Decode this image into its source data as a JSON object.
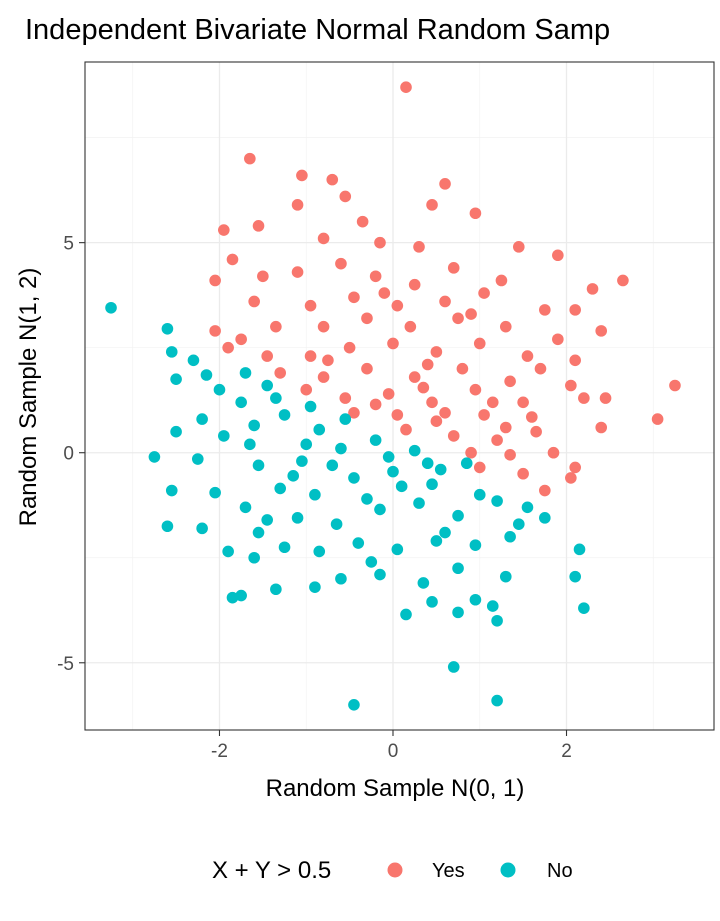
{
  "chart_data": {
    "type": "scatter",
    "title": "Independent Bivariate Normal Random Samp",
    "xlabel": "Random Sample N(0, 1)",
    "ylabel": "Random Sample N(1, 2)",
    "xlim": [
      -3.55,
      3.7
    ],
    "ylim": [
      -6.6,
      9.3
    ],
    "x_ticks": [
      -2,
      0,
      2
    ],
    "x_tick_labels": [
      "-2",
      "0",
      "2"
    ],
    "y_ticks": [
      -5,
      0,
      5
    ],
    "y_tick_labels": [
      "-5",
      "0",
      "5"
    ],
    "grid": true,
    "legend": {
      "title": "X + Y > 0.5",
      "position": "bottom",
      "entries": [
        {
          "label": "Yes",
          "color": "#F8766D"
        },
        {
          "label": "No",
          "color": "#00BFC4"
        }
      ]
    },
    "series": [
      {
        "name": "Yes",
        "color": "#F8766D",
        "points": [
          [
            0.15,
            8.7
          ],
          [
            -1.65,
            7.0
          ],
          [
            -1.05,
            6.6
          ],
          [
            -0.7,
            6.5
          ],
          [
            0.6,
            6.4
          ],
          [
            -0.55,
            6.1
          ],
          [
            -1.1,
            5.9
          ],
          [
            0.45,
            5.9
          ],
          [
            0.95,
            5.7
          ],
          [
            -0.35,
            5.5
          ],
          [
            -1.95,
            5.3
          ],
          [
            -1.55,
            5.4
          ],
          [
            -0.8,
            5.1
          ],
          [
            -0.15,
            5.0
          ],
          [
            0.3,
            4.9
          ],
          [
            1.45,
            4.9
          ],
          [
            -1.85,
            4.6
          ],
          [
            -0.6,
            4.5
          ],
          [
            0.7,
            4.4
          ],
          [
            1.9,
            4.7
          ],
          [
            -2.05,
            4.1
          ],
          [
            -1.5,
            4.2
          ],
          [
            -1.1,
            4.3
          ],
          [
            -0.2,
            4.2
          ],
          [
            0.25,
            4.0
          ],
          [
            1.25,
            4.1
          ],
          [
            2.3,
            3.9
          ],
          [
            2.65,
            4.1
          ],
          [
            -1.6,
            3.6
          ],
          [
            -0.95,
            3.5
          ],
          [
            -0.45,
            3.7
          ],
          [
            0.05,
            3.5
          ],
          [
            0.6,
            3.6
          ],
          [
            1.05,
            3.8
          ],
          [
            1.75,
            3.4
          ],
          [
            2.1,
            3.4
          ],
          [
            -2.05,
            2.9
          ],
          [
            -1.75,
            2.7
          ],
          [
            -1.35,
            3.0
          ],
          [
            -0.8,
            3.0
          ],
          [
            -0.3,
            3.2
          ],
          [
            0.2,
            3.0
          ],
          [
            0.75,
            3.2
          ],
          [
            1.3,
            3.0
          ],
          [
            1.9,
            2.7
          ],
          [
            2.4,
            2.9
          ],
          [
            -1.9,
            2.5
          ],
          [
            -1.45,
            2.3
          ],
          [
            -0.95,
            2.3
          ],
          [
            -0.5,
            2.5
          ],
          [
            0.0,
            2.6
          ],
          [
            0.5,
            2.4
          ],
          [
            1.0,
            2.6
          ],
          [
            1.55,
            2.3
          ],
          [
            2.1,
            2.2
          ],
          [
            -1.3,
            1.9
          ],
          [
            -0.8,
            1.8
          ],
          [
            -0.3,
            2.0
          ],
          [
            0.25,
            1.8
          ],
          [
            0.8,
            2.0
          ],
          [
            1.35,
            1.7
          ],
          [
            2.05,
            1.6
          ],
          [
            2.2,
            1.3
          ],
          [
            3.25,
            1.6
          ],
          [
            -1.0,
            1.5
          ],
          [
            -0.55,
            1.3
          ],
          [
            -0.05,
            1.4
          ],
          [
            0.45,
            1.2
          ],
          [
            0.95,
            1.5
          ],
          [
            1.5,
            1.2
          ],
          [
            -0.45,
            0.95
          ],
          [
            0.05,
            0.9
          ],
          [
            0.5,
            0.75
          ],
          [
            1.05,
            0.9
          ],
          [
            1.6,
            0.85
          ],
          [
            2.45,
            1.3
          ],
          [
            3.05,
            0.8
          ],
          [
            0.15,
            0.55
          ],
          [
            0.7,
            0.4
          ],
          [
            1.2,
            0.3
          ],
          [
            1.65,
            0.5
          ],
          [
            2.4,
            0.6
          ],
          [
            0.9,
            0.0
          ],
          [
            1.35,
            -0.05
          ],
          [
            1.85,
            0.0
          ],
          [
            1.0,
            -0.35
          ],
          [
            1.5,
            -0.5
          ],
          [
            2.05,
            -0.6
          ],
          [
            2.1,
            -0.35
          ],
          [
            1.75,
            -0.9
          ],
          [
            1.3,
            0.6
          ],
          [
            0.35,
            1.55
          ],
          [
            -0.2,
            1.15
          ],
          [
            0.6,
            0.95
          ],
          [
            1.15,
            1.2
          ],
          [
            -0.75,
            2.2
          ],
          [
            1.7,
            2.0
          ],
          [
            0.9,
            3.3
          ],
          [
            -0.1,
            3.8
          ],
          [
            0.4,
            2.1
          ]
        ]
      },
      {
        "name": "No",
        "color": "#00BFC4",
        "points": [
          [
            -3.25,
            3.45
          ],
          [
            -2.6,
            2.95
          ],
          [
            -2.55,
            2.4
          ],
          [
            -2.3,
            2.2
          ],
          [
            -2.5,
            1.75
          ],
          [
            -2.15,
            1.85
          ],
          [
            -1.7,
            1.9
          ],
          [
            -1.45,
            1.6
          ],
          [
            -2.5,
            0.5
          ],
          [
            -2.2,
            0.8
          ],
          [
            -2.75,
            -0.1
          ],
          [
            -2.25,
            -0.15
          ],
          [
            -1.95,
            0.4
          ],
          [
            -1.65,
            0.2
          ],
          [
            -1.25,
            0.9
          ],
          [
            -0.85,
            0.55
          ],
          [
            -1.55,
            -0.3
          ],
          [
            -1.05,
            -0.2
          ],
          [
            -0.6,
            0.1
          ],
          [
            -0.2,
            0.3
          ],
          [
            0.25,
            0.05
          ],
          [
            -2.05,
            -0.95
          ],
          [
            -1.7,
            -1.3
          ],
          [
            -1.3,
            -0.85
          ],
          [
            -0.9,
            -1.0
          ],
          [
            -0.45,
            -0.6
          ],
          [
            0.0,
            -0.45
          ],
          [
            0.45,
            -0.75
          ],
          [
            0.85,
            -0.25
          ],
          [
            -2.55,
            -0.9
          ],
          [
            -2.6,
            -1.75
          ],
          [
            -2.2,
            -1.8
          ],
          [
            -1.55,
            -1.9
          ],
          [
            -1.1,
            -1.55
          ],
          [
            -0.65,
            -1.7
          ],
          [
            -0.15,
            -1.35
          ],
          [
            0.3,
            -1.2
          ],
          [
            0.75,
            -1.5
          ],
          [
            1.2,
            -1.15
          ],
          [
            1.55,
            -1.3
          ],
          [
            1.75,
            -1.55
          ],
          [
            -1.9,
            -2.35
          ],
          [
            -1.6,
            -2.5
          ],
          [
            -1.25,
            -2.25
          ],
          [
            -0.85,
            -2.35
          ],
          [
            -0.4,
            -2.15
          ],
          [
            0.05,
            -2.3
          ],
          [
            0.5,
            -2.1
          ],
          [
            0.95,
            -2.2
          ],
          [
            1.35,
            -2.0
          ],
          [
            2.15,
            -2.3
          ],
          [
            -1.85,
            -3.45
          ],
          [
            -1.75,
            -3.4
          ],
          [
            -1.35,
            -3.25
          ],
          [
            -0.9,
            -3.2
          ],
          [
            -0.6,
            -3.0
          ],
          [
            -0.15,
            -2.9
          ],
          [
            0.35,
            -3.1
          ],
          [
            0.75,
            -2.75
          ],
          [
            1.3,
            -2.95
          ],
          [
            2.1,
            -2.95
          ],
          [
            0.15,
            -3.85
          ],
          [
            0.45,
            -3.55
          ],
          [
            0.75,
            -3.8
          ],
          [
            0.95,
            -3.5
          ],
          [
            1.15,
            -3.65
          ],
          [
            1.2,
            -4.0
          ],
          [
            2.2,
            -3.7
          ],
          [
            0.7,
            -5.1
          ],
          [
            1.2,
            -5.9
          ],
          [
            -0.45,
            -6.0
          ],
          [
            -1.75,
            1.2
          ],
          [
            -1.35,
            1.3
          ],
          [
            -0.95,
            1.1
          ],
          [
            -0.55,
            0.8
          ],
          [
            -0.05,
            -0.1
          ],
          [
            0.4,
            -0.25
          ],
          [
            -2.0,
            1.5
          ],
          [
            -1.15,
            -0.55
          ],
          [
            0.6,
            -1.9
          ],
          [
            -0.3,
            -1.1
          ],
          [
            1.0,
            -1.0
          ],
          [
            -1.0,
            0.2
          ],
          [
            0.1,
            -0.8
          ],
          [
            -1.45,
            -1.6
          ],
          [
            -0.7,
            -0.3
          ],
          [
            0.55,
            -0.4
          ],
          [
            -0.25,
            -2.6
          ],
          [
            1.45,
            -1.7
          ],
          [
            -1.6,
            0.65
          ]
        ]
      }
    ]
  }
}
